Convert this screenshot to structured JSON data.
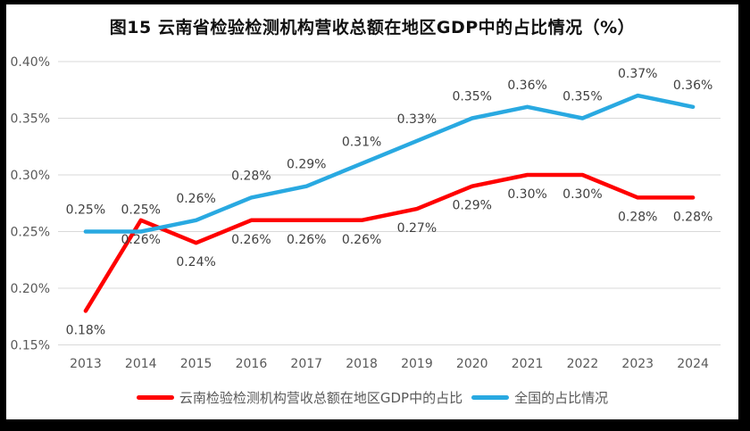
{
  "page": {
    "outer_background": "#000000",
    "canvas_background": "#FFFFFF"
  },
  "colors": {
    "gridline": "#D9D9D9",
    "axis_tick_text": "#595959",
    "data_label_text": "#404040",
    "title_text": "#111111",
    "legend_text": "#595959",
    "series_yunnan": "#FF0000",
    "series_national": "#29A9E1"
  },
  "chart_data": {
    "type": "line",
    "title": "图15 云南省检验检测机构营收总额在地区GDP中的占比情况（%）",
    "categories": [
      "2013",
      "2014",
      "2015",
      "2016",
      "2017",
      "2018",
      "2019",
      "2020",
      "2021",
      "2022",
      "2023",
      "2024"
    ],
    "xlabel": "",
    "ylabel": "",
    "y_axis": {
      "tick_labels": [
        "0.40%",
        "0.35%",
        "0.30%",
        "0.25%",
        "0.20%",
        "0.15%"
      ],
      "tick_values": [
        0.4,
        0.35,
        0.3,
        0.25,
        0.2,
        0.15
      ],
      "min": 0.15,
      "max": 0.4
    },
    "grid": "horizontal",
    "legend_position": "bottom",
    "series": [
      {
        "name": "云南检验检测机构营收总额在地区GDP中的占比",
        "color": "#FF0000",
        "label_position": "below",
        "values": [
          0.18,
          0.26,
          0.24,
          0.26,
          0.26,
          0.26,
          0.27,
          0.29,
          0.3,
          0.3,
          0.28,
          0.28
        ],
        "data_labels": [
          "0.18%",
          "0.26%",
          "0.24%",
          "0.26%",
          "0.26%",
          "0.26%",
          "0.27%",
          "0.29%",
          "0.30%",
          "0.30%",
          "0.28%",
          "0.28%"
        ]
      },
      {
        "name": "全国的占比情况",
        "color": "#29A9E1",
        "label_position": "above",
        "values": [
          0.25,
          0.25,
          0.26,
          0.28,
          0.29,
          0.31,
          0.33,
          0.35,
          0.36,
          0.35,
          0.37,
          0.36
        ],
        "data_labels": [
          "0.25%",
          "0.25%",
          "0.26%",
          "0.28%",
          "0.29%",
          "0.31%",
          "0.33%",
          "0.35%",
          "0.36%",
          "0.35%",
          "0.37%",
          "0.36%"
        ]
      }
    ]
  }
}
